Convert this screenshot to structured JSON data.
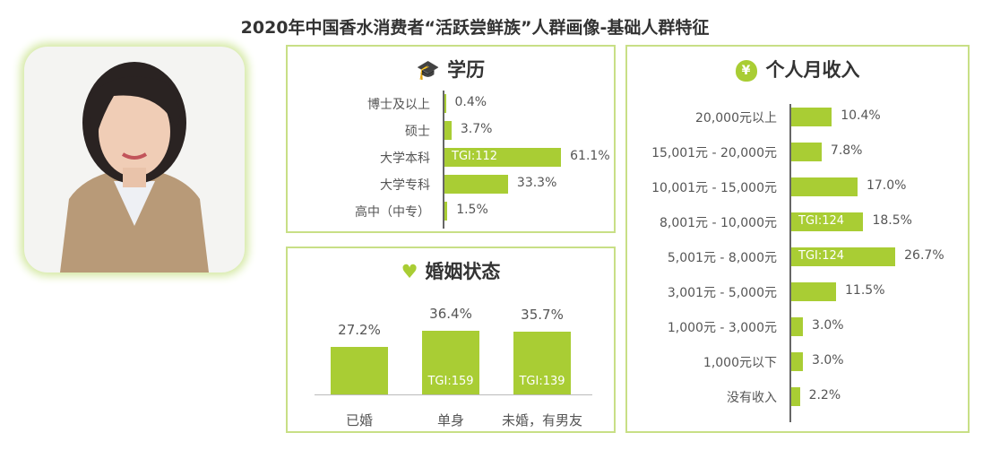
{
  "title": "2020年中国香水消费者“活跃尝鲜族”人群画像-基础人群特征",
  "colors": {
    "bar": "#a9cd34",
    "border": "#c8df86"
  },
  "chart_data": [
    {
      "type": "bar",
      "orientation": "horizontal",
      "title": "学历",
      "icon": "graduation-cap-icon",
      "unit": "%",
      "categories": [
        "博士及以上",
        "硕士",
        "大学本科",
        "大学专科",
        "高中（中专）"
      ],
      "values": [
        0.4,
        3.7,
        61.1,
        33.3,
        1.5
      ],
      "labels": [
        "0.4%",
        "3.7%",
        "61.1%",
        "33.3%",
        "1.5%"
      ],
      "annotations": [
        "",
        "",
        "TGI:112",
        "",
        ""
      ]
    },
    {
      "type": "bar",
      "orientation": "vertical",
      "title": "婚姻状态",
      "icon": "heart-icon",
      "unit": "%",
      "categories": [
        "已婚",
        "单身",
        "未婚，有男友"
      ],
      "values": [
        27.2,
        36.4,
        35.7
      ],
      "labels": [
        "27.2%",
        "36.4%",
        "35.7%"
      ],
      "annotations": [
        "",
        "TGI:159",
        "TGI:139"
      ]
    },
    {
      "type": "bar",
      "orientation": "horizontal",
      "title": "个人月收入",
      "icon": "money-bag-icon",
      "unit": "%",
      "categories": [
        "20,000元以上",
        "15,001元 - 20,000元",
        "10,001元 - 15,000元",
        "8,001元 - 10,000元",
        "5,001元 - 8,000元",
        "3,001元 - 5,000元",
        "1,000元 - 3,000元",
        "1,000元以下",
        "没有收入"
      ],
      "values": [
        10.4,
        7.8,
        17.0,
        18.5,
        26.7,
        11.5,
        3.0,
        3.0,
        2.2
      ],
      "labels": [
        "10.4%",
        "7.8%",
        "17.0%",
        "18.5%",
        "26.7%",
        "11.5%",
        "3.0%",
        "3.0%",
        "2.2%"
      ],
      "annotations": [
        "",
        "",
        "",
        "TGI:124",
        "TGI:124",
        "",
        "",
        "",
        ""
      ]
    }
  ]
}
